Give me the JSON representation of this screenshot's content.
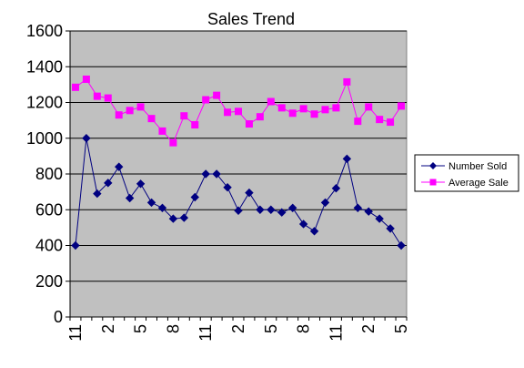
{
  "chart_data": {
    "type": "line",
    "title": "Sales Trend",
    "xlabel": "",
    "ylabel": "",
    "ylim": [
      0,
      1600
    ],
    "y_ticks": [
      0,
      200,
      400,
      600,
      800,
      1000,
      1200,
      1400,
      1600
    ],
    "grid": true,
    "legend_position": "right",
    "plot_background": "#c0c0c0",
    "x_tick_labels": [
      "11",
      "2",
      "5",
      "8",
      "11",
      "2",
      "5",
      "8",
      "11",
      "2",
      "5"
    ],
    "series": [
      {
        "name": "Number Sold",
        "color": "#000080",
        "marker": "diamond",
        "values": [
          400,
          1000,
          690,
          750,
          840,
          665,
          745,
          640,
          610,
          550,
          555,
          670,
          800,
          800,
          725,
          595,
          695,
          600,
          600,
          585,
          610,
          520,
          480,
          640,
          720,
          885,
          610,
          590,
          550,
          495,
          400
        ]
      },
      {
        "name": "Average Sale",
        "color": "#ff00ff",
        "marker": "square",
        "values": [
          1285,
          1330,
          1235,
          1225,
          1130,
          1155,
          1175,
          1110,
          1040,
          975,
          1125,
          1075,
          1215,
          1240,
          1145,
          1150,
          1080,
          1120,
          1205,
          1170,
          1140,
          1165,
          1135,
          1160,
          1170,
          1315,
          1095,
          1175,
          1105,
          1090,
          1180
        ]
      }
    ]
  }
}
